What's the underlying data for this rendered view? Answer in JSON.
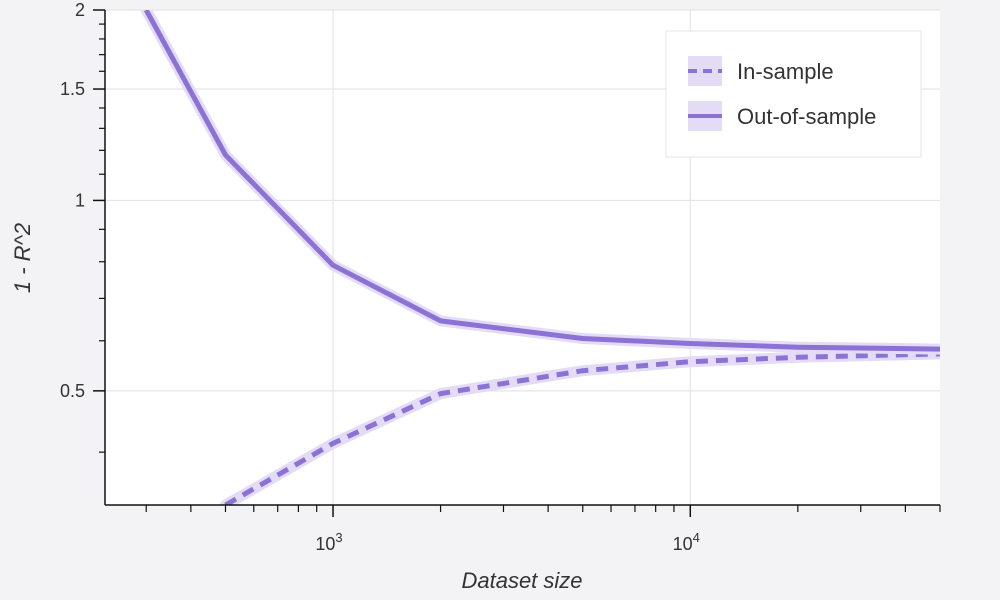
{
  "chart_data": {
    "type": "line",
    "xlabel": "Dataset size",
    "ylabel": "1 - R^2",
    "x_scale": "log",
    "y_scale": "log",
    "xlim": [
      230,
      50000
    ],
    "ylim": [
      0.33,
      2
    ],
    "x_ticks": [
      {
        "base": "10",
        "exp": "3",
        "value": 1000
      },
      {
        "base": "10",
        "exp": "4",
        "value": 10000
      }
    ],
    "y_ticks": [
      {
        "label": "0.5",
        "value": 0.5
      },
      {
        "label": "1",
        "value": 1
      },
      {
        "label": "1.5",
        "value": 1.5
      },
      {
        "label": "2",
        "value": 2
      }
    ],
    "grid": true,
    "legend_position": "top-right",
    "color": "#8b72d4",
    "band_color": "#e4dcf7",
    "series": [
      {
        "name": "In-sample",
        "style": "dashed",
        "x": [
          500,
          1000,
          2000,
          5000,
          10000,
          20000,
          50000
        ],
        "y": [
          0.33,
          0.413,
          0.495,
          0.538,
          0.556,
          0.565,
          0.572
        ]
      },
      {
        "name": "Out-of-sample",
        "style": "solid",
        "x": [
          300,
          500,
          1000,
          2000,
          5000,
          10000,
          20000,
          50000
        ],
        "y": [
          2.0,
          1.18,
          0.79,
          0.645,
          0.605,
          0.594,
          0.586,
          0.582
        ]
      }
    ]
  }
}
